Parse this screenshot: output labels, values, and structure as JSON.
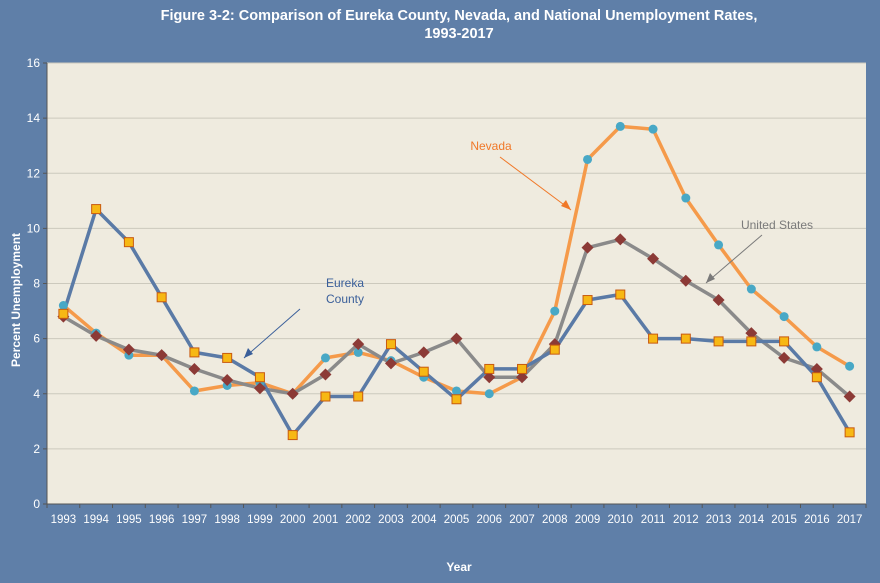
{
  "colors": {
    "background": "#5f7fa8",
    "plot_area": "#efebdf",
    "gridline": "#ccc9bd",
    "eureka": "#5a7aa6",
    "nevada": "#f59a4a",
    "us": "#8a8a8a",
    "eureka_marker": "#f7b814",
    "eureka_marker_stroke": "#c85a10",
    "nevada_marker": "#48a8c6",
    "us_marker": "#8c3a36",
    "nevada_label": "#f07828",
    "eureka_label": "#3a5f9a",
    "us_label": "#7a7a7a",
    "white_text": "#ffffff"
  },
  "chart_data": {
    "type": "line",
    "title": "Figure 3-2: Comparison of Eureka County, Nevada, and National Unemployment Rates,",
    "subtitle": "1993-2017",
    "xlabel": "Year",
    "ylabel": "Percent Unemployment",
    "ylim": [
      0,
      16
    ],
    "yticks": [
      "0",
      "2",
      "4",
      "6",
      "8",
      "10",
      "12",
      "14",
      "16"
    ],
    "grid": "horizontal",
    "categories": [
      "1993",
      "1994",
      "1995",
      "1996",
      "1997",
      "1998",
      "1999",
      "2000",
      "2001",
      "2002",
      "2003",
      "2004",
      "2005",
      "2006",
      "2007",
      "2008",
      "2009",
      "2010",
      "2011",
      "2012",
      "2013",
      "2014",
      "2015",
      "2016",
      "2017"
    ],
    "series": [
      {
        "name": "Nevada",
        "marker": "circle",
        "values": [
          7.2,
          6.2,
          5.4,
          5.4,
          4.1,
          4.3,
          4.4,
          4.0,
          5.3,
          5.5,
          5.2,
          4.6,
          4.1,
          4.0,
          4.6,
          7.0,
          12.5,
          13.7,
          13.6,
          11.1,
          9.4,
          7.8,
          6.8,
          5.7,
          5.0
        ]
      },
      {
        "name": "United States",
        "marker": "diamond",
        "values": [
          6.8,
          6.1,
          5.6,
          5.4,
          4.9,
          4.5,
          4.2,
          4.0,
          4.7,
          5.8,
          5.1,
          5.5,
          6.0,
          4.6,
          4.6,
          5.8,
          9.3,
          9.6,
          8.9,
          8.1,
          7.4,
          6.2,
          5.3,
          4.9,
          3.9
        ]
      },
      {
        "name": "Eureka County",
        "marker": "square",
        "values": [
          6.9,
          10.7,
          9.5,
          7.5,
          5.5,
          5.3,
          4.6,
          2.5,
          3.9,
          3.9,
          5.8,
          4.8,
          3.8,
          4.9,
          4.9,
          5.6,
          7.4,
          7.6,
          6.0,
          6.0,
          5.9,
          5.9,
          5.9,
          4.6,
          2.6
        ]
      }
    ],
    "annotations": [
      {
        "series": "Nevada",
        "text": "Nevada"
      },
      {
        "series": "United States",
        "text": "United States"
      },
      {
        "series": "Eureka County",
        "text_lines": [
          "Eureka",
          "County"
        ]
      }
    ]
  }
}
